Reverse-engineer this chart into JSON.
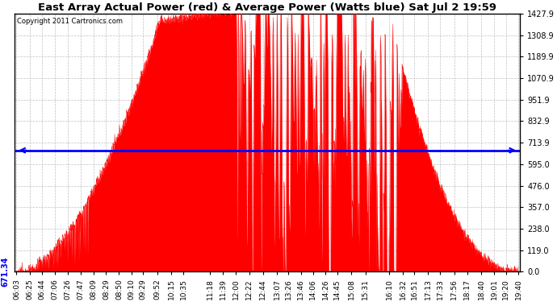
{
  "title": "East Array Actual Power (red) & Average Power (Watts blue) Sat Jul 2 19:59",
  "copyright": "Copyright 2011 Cartronics.com",
  "average_power": 671.34,
  "y_ticks": [
    0.0,
    119.0,
    238.0,
    357.0,
    476.0,
    595.0,
    713.9,
    832.9,
    951.9,
    1070.9,
    1189.9,
    1308.9,
    1427.9
  ],
  "x_labels": [
    "06:03",
    "06:25",
    "06:44",
    "07:06",
    "07:26",
    "07:47",
    "08:09",
    "08:29",
    "08:50",
    "09:10",
    "09:29",
    "09:52",
    "10:15",
    "10:35",
    "11:18",
    "11:39",
    "12:00",
    "12:22",
    "12:44",
    "13:07",
    "13:26",
    "13:46",
    "14:06",
    "14:26",
    "14:45",
    "15:08",
    "15:31",
    "16:10",
    "16:32",
    "16:51",
    "17:13",
    "17:33",
    "17:56",
    "18:17",
    "18:40",
    "19:01",
    "19:20",
    "19:40"
  ],
  "background_color": "#ffffff",
  "fill_color": "#ff0000",
  "line_color": "#0000ff",
  "grid_color": "#b0b0b0",
  "title_fontsize": 9.5,
  "tick_fontsize": 7,
  "peak_power": 1427.9,
  "peak_time_min": 790,
  "start_label": "06:03",
  "end_label": "19:40"
}
